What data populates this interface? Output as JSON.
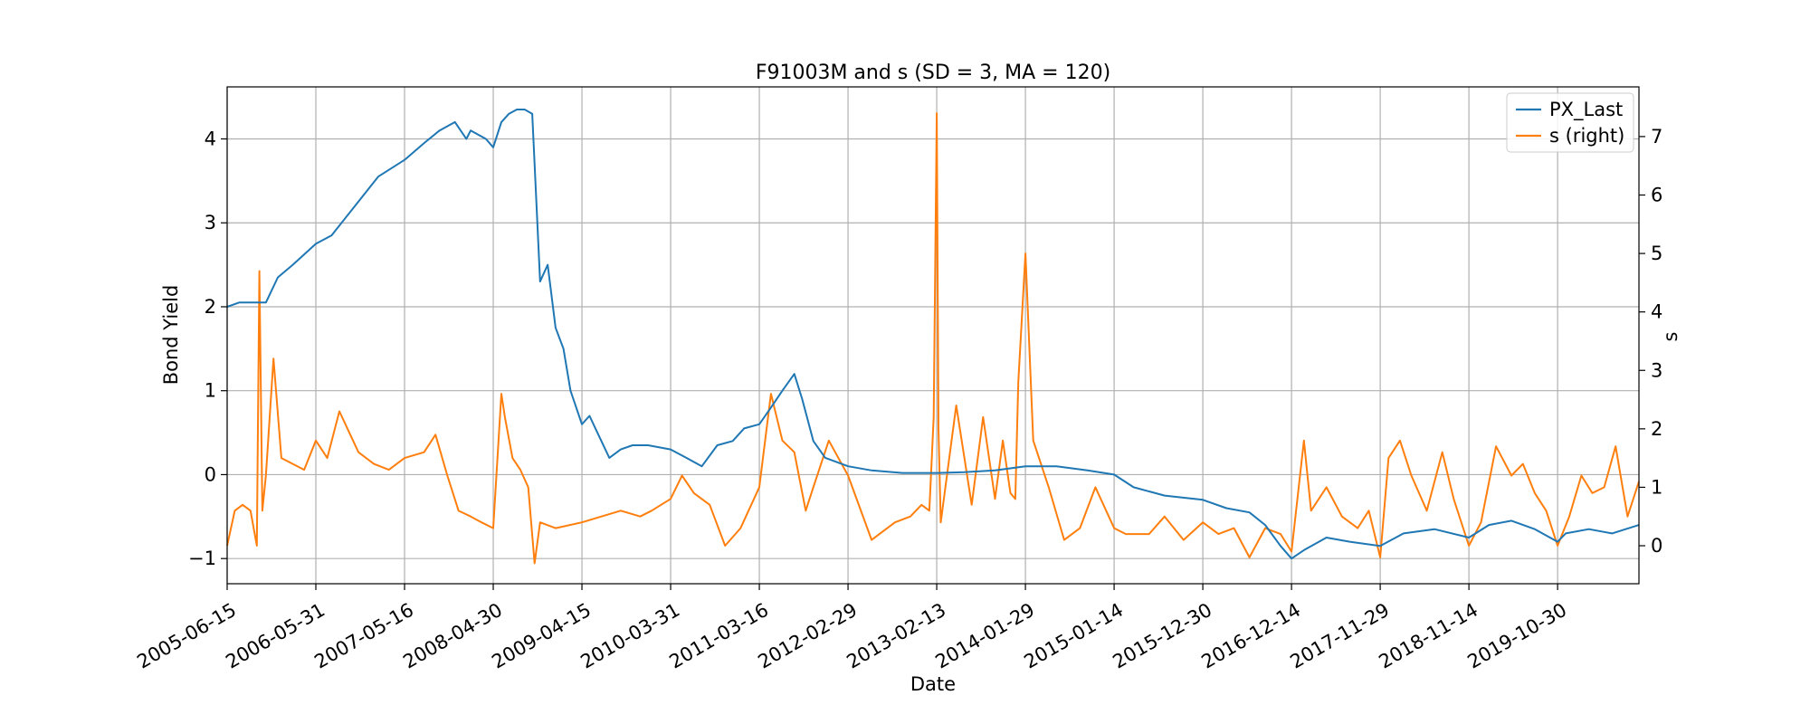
{
  "chart_data": {
    "type": "line",
    "title": "F91003M and s (SD = 3, MA = 120)",
    "xlabel": "Date",
    "ylabel": "Bond Yield",
    "y2label": "s",
    "x_ticks": [
      "2005-06-15",
      "2006-05-31",
      "2007-05-16",
      "2008-04-30",
      "2009-04-15",
      "2010-03-31",
      "2011-03-16",
      "2012-02-29",
      "2013-02-13",
      "2014-01-29",
      "2015-01-14",
      "2015-12-30",
      "2016-12-14",
      "2017-11-29",
      "2018-11-14",
      "2019-10-30"
    ],
    "xlim": [
      "2005-06-15",
      "2020-09-15"
    ],
    "ylim": [
      -1.3,
      4.62
    ],
    "y2lim": [
      -0.65,
      7.85
    ],
    "y_ticks": [
      -1,
      0,
      1,
      2,
      3,
      4
    ],
    "y2_ticks": [
      0,
      1,
      2,
      3,
      4,
      5,
      6,
      7
    ],
    "grid": true,
    "legend_position": "top-right",
    "colors": {
      "px_last": "#1f77b4",
      "s": "#ff7f0e",
      "grid": "#b0b0b0"
    },
    "series": [
      {
        "name": "PX_Last",
        "axis": "left",
        "x": [
          "2005-06-15",
          "2005-08-01",
          "2005-10-01",
          "2005-11-15",
          "2006-01-01",
          "2006-03-01",
          "2006-05-31",
          "2006-08-01",
          "2006-11-01",
          "2007-02-01",
          "2007-05-16",
          "2007-08-01",
          "2007-10-01",
          "2007-12-01",
          "2008-01-15",
          "2008-02-01",
          "2008-04-01",
          "2008-04-30",
          "2008-06-01",
          "2008-07-01",
          "2008-08-01",
          "2008-09-01",
          "2008-10-01",
          "2008-11-01",
          "2008-12-01",
          "2009-01-01",
          "2009-02-01",
          "2009-03-01",
          "2009-04-15",
          "2009-05-15",
          "2009-06-15",
          "2009-08-01",
          "2009-09-15",
          "2009-11-01",
          "2010-01-01",
          "2010-03-31",
          "2010-06-01",
          "2010-08-01",
          "2010-10-01",
          "2010-12-01",
          "2011-01-15",
          "2011-03-16",
          "2011-05-01",
          "2011-06-15",
          "2011-08-01",
          "2011-09-01",
          "2011-10-15",
          "2011-12-01",
          "2012-02-29",
          "2012-06-01",
          "2012-10-01",
          "2013-02-13",
          "2013-06-01",
          "2013-10-01",
          "2014-01-29",
          "2014-06-01",
          "2014-10-01",
          "2015-01-14",
          "2015-04-01",
          "2015-08-01",
          "2015-12-30",
          "2016-04-01",
          "2016-07-01",
          "2016-09-01",
          "2016-11-01",
          "2016-12-14",
          "2017-02-01",
          "2017-05-01",
          "2017-08-01",
          "2017-11-29",
          "2018-03-01",
          "2018-07-01",
          "2018-11-14",
          "2019-02-01",
          "2019-05-01",
          "2019-08-01",
          "2019-10-30",
          "2019-12-01",
          "2020-03-01",
          "2020-06-01",
          "2020-09-15"
        ],
        "values": [
          2.0,
          2.05,
          2.05,
          2.05,
          2.35,
          2.5,
          2.75,
          2.85,
          3.2,
          3.55,
          3.75,
          3.95,
          4.1,
          4.2,
          4.0,
          4.1,
          4.0,
          3.9,
          4.2,
          4.3,
          4.35,
          4.35,
          4.3,
          2.3,
          2.5,
          1.75,
          1.5,
          1.0,
          0.6,
          0.7,
          0.5,
          0.2,
          0.3,
          0.35,
          0.35,
          0.3,
          0.2,
          0.1,
          0.35,
          0.4,
          0.55,
          0.6,
          0.8,
          1.0,
          1.2,
          0.9,
          0.4,
          0.2,
          0.1,
          0.05,
          0.02,
          0.02,
          0.03,
          0.05,
          0.1,
          0.1,
          0.05,
          0.0,
          -0.15,
          -0.25,
          -0.3,
          -0.4,
          -0.45,
          -0.6,
          -0.85,
          -1.0,
          -0.9,
          -0.75,
          -0.8,
          -0.85,
          -0.7,
          -0.65,
          -0.75,
          -0.6,
          -0.55,
          -0.65,
          -0.8,
          -0.7,
          -0.65,
          -0.7,
          -0.6
        ]
      },
      {
        "name": "s (right)",
        "axis": "right",
        "x": [
          "2005-06-15",
          "2005-07-15",
          "2005-08-15",
          "2005-09-15",
          "2005-10-10",
          "2005-10-20",
          "2005-11-01",
          "2005-11-15",
          "2005-12-15",
          "2006-01-15",
          "2006-03-01",
          "2006-04-15",
          "2006-05-31",
          "2006-07-15",
          "2006-09-01",
          "2006-11-15",
          "2007-01-15",
          "2007-03-15",
          "2007-05-16",
          "2007-08-01",
          "2007-09-15",
          "2007-11-01",
          "2007-12-15",
          "2008-02-01",
          "2008-03-15",
          "2008-04-30",
          "2008-06-01",
          "2008-06-15",
          "2008-07-15",
          "2008-08-15",
          "2008-09-15",
          "2008-10-10",
          "2008-11-01",
          "2009-01-01",
          "2009-04-15",
          "2009-07-01",
          "2009-09-15",
          "2009-12-01",
          "2010-01-15",
          "2010-03-31",
          "2010-05-15",
          "2010-07-01",
          "2010-09-01",
          "2010-11-01",
          "2011-01-01",
          "2011-03-16",
          "2011-05-01",
          "2011-06-15",
          "2011-08-01",
          "2011-09-15",
          "2011-10-15",
          "2011-12-15",
          "2012-02-29",
          "2012-06-01",
          "2012-09-01",
          "2012-11-01",
          "2012-12-15",
          "2013-01-15",
          "2013-02-01",
          "2013-02-13",
          "2013-02-20",
          "2013-03-01",
          "2013-05-01",
          "2013-07-01",
          "2013-08-15",
          "2013-10-01",
          "2013-11-01",
          "2013-12-01",
          "2013-12-20",
          "2014-01-01",
          "2014-01-29",
          "2014-03-01",
          "2014-05-01",
          "2014-07-01",
          "2014-09-01",
          "2014-11-01",
          "2015-01-14",
          "2015-03-01",
          "2015-06-01",
          "2015-08-01",
          "2015-10-15",
          "2015-12-30",
          "2016-03-01",
          "2016-05-01",
          "2016-07-01",
          "2016-09-01",
          "2016-11-01",
          "2016-12-14",
          "2017-02-01",
          "2017-03-01",
          "2017-05-01",
          "2017-07-01",
          "2017-09-01",
          "2017-10-15",
          "2017-11-29",
          "2018-01-01",
          "2018-02-15",
          "2018-04-01",
          "2018-06-01",
          "2018-08-01",
          "2018-09-15",
          "2018-11-14",
          "2019-01-01",
          "2019-03-01",
          "2019-05-01",
          "2019-06-15",
          "2019-08-01",
          "2019-09-15",
          "2019-10-30",
          "2019-12-15",
          "2020-02-01",
          "2020-03-15",
          "2020-05-01",
          "2020-06-15",
          "2020-08-01",
          "2020-09-15"
        ],
        "values": [
          0.0,
          0.6,
          0.7,
          0.6,
          0.0,
          4.7,
          0.6,
          1.2,
          3.2,
          1.5,
          1.4,
          1.3,
          1.8,
          1.5,
          2.3,
          1.6,
          1.4,
          1.3,
          1.5,
          1.6,
          1.9,
          1.2,
          0.6,
          0.5,
          0.4,
          0.3,
          2.6,
          2.2,
          1.5,
          1.3,
          1.0,
          -0.3,
          0.4,
          0.3,
          0.4,
          0.5,
          0.6,
          0.5,
          0.6,
          0.8,
          1.2,
          0.9,
          0.7,
          0.0,
          0.3,
          1.0,
          2.6,
          1.8,
          1.6,
          0.6,
          1.0,
          1.8,
          1.2,
          0.1,
          0.4,
          0.5,
          0.7,
          0.6,
          2.2,
          7.4,
          2.0,
          0.4,
          2.4,
          0.7,
          2.2,
          0.8,
          1.8,
          0.9,
          0.8,
          2.8,
          5.0,
          1.8,
          1.0,
          0.1,
          0.3,
          1.0,
          0.3,
          0.2,
          0.2,
          0.5,
          0.1,
          0.4,
          0.2,
          0.3,
          -0.2,
          0.3,
          0.2,
          -0.1,
          1.8,
          0.6,
          1.0,
          0.5,
          0.3,
          0.6,
          -0.2,
          1.5,
          1.8,
          1.2,
          0.6,
          1.6,
          0.8,
          0.0,
          0.4,
          1.7,
          1.2,
          1.4,
          0.9,
          0.6,
          0.0,
          0.5,
          1.2,
          0.9,
          1.0,
          1.7,
          0.5,
          1.1
        ]
      }
    ]
  }
}
